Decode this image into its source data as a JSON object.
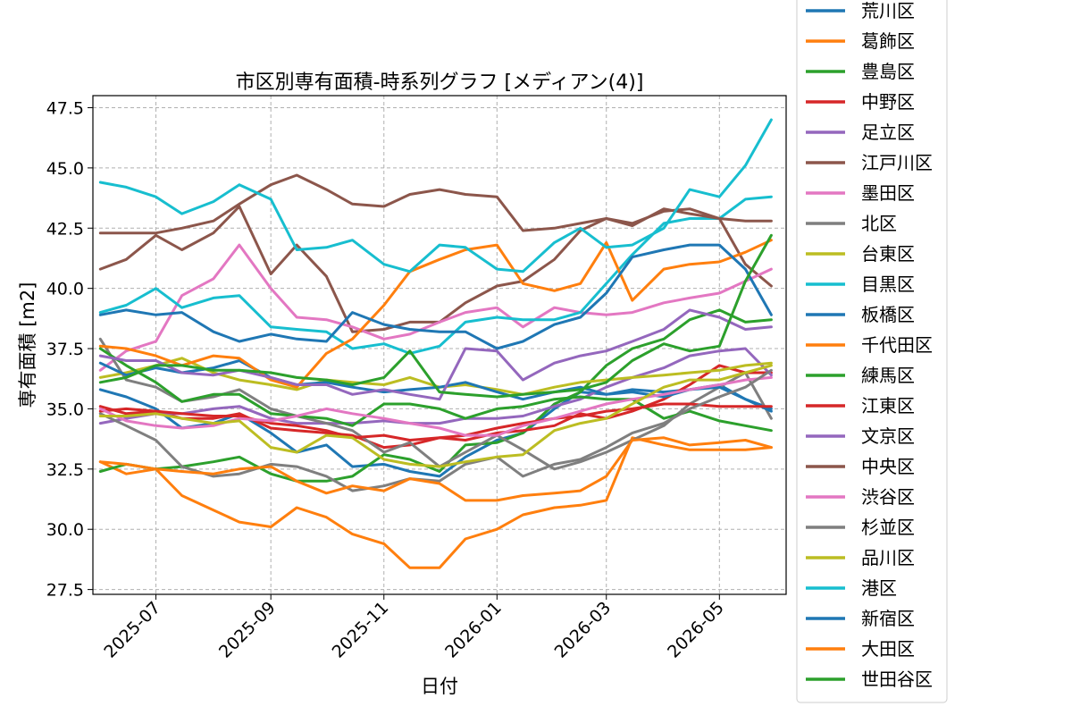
{
  "chart_data": {
    "type": "line",
    "title": "市区別専有面積-時系列グラフ [メディアン(4)]",
    "xlabel": "日付",
    "ylabel": "専有面積 [m2]",
    "xlim": [
      "2025-05-28",
      "2026-06-06"
    ],
    "ylim": [
      27.3,
      48.0
    ],
    "grid": true,
    "legend_position": "right-outside",
    "x_ticks": [
      "2025-07-01",
      "2025-09-01",
      "2025-11-01",
      "2026-01-01",
      "2026-03-01",
      "2026-05-01"
    ],
    "x_tick_labels": [
      "2025-07",
      "2025-09",
      "2025-11",
      "2026-01",
      "2026-03",
      "2026-05"
    ],
    "y_ticks": [
      27.5,
      30.0,
      32.5,
      35.0,
      37.5,
      40.0,
      42.5,
      45.0,
      47.5
    ],
    "y_tick_labels": [
      "27.5",
      "30.0",
      "32.5",
      "35.0",
      "37.5",
      "40.0",
      "42.5",
      "45.0",
      "47.5"
    ],
    "x": [
      "2025-06-01",
      "2025-06-15",
      "2025-07-01",
      "2025-07-15",
      "2025-08-01",
      "2025-08-15",
      "2025-09-01",
      "2025-09-15",
      "2025-10-01",
      "2025-10-15",
      "2025-11-01",
      "2025-11-15",
      "2025-12-01",
      "2025-12-15",
      "2026-01-01",
      "2026-01-15",
      "2026-02-01",
      "2026-02-15",
      "2026-03-01",
      "2026-03-15",
      "2026-04-01",
      "2026-04-15",
      "2026-05-01",
      "2026-05-15",
      "2026-05-29"
    ],
    "series": [
      {
        "name": "荒川区",
        "color": "#1f77b4",
        "values": [
          35.8,
          35.5,
          35.0,
          34.2,
          34.4,
          34.8,
          34.0,
          33.2,
          33.5,
          32.6,
          32.7,
          32.4,
          32.2,
          33.0,
          33.7,
          34.0,
          35.0,
          35.7,
          35.6,
          35.8,
          35.7,
          35.8,
          36.0,
          35.4,
          35.0
        ]
      },
      {
        "name": "葛飾区",
        "color": "#ff7f0e",
        "values": [
          32.8,
          32.3,
          32.5,
          31.4,
          30.8,
          30.3,
          30.1,
          30.9,
          30.5,
          29.8,
          29.4,
          28.4,
          28.4,
          29.6,
          30.0,
          30.6,
          30.9,
          31.0,
          31.2,
          33.8,
          33.5,
          33.3,
          33.3,
          33.3,
          33.4
        ]
      },
      {
        "name": "豊島区",
        "color": "#2ca02c",
        "values": [
          32.4,
          32.7,
          32.5,
          32.6,
          32.8,
          33.0,
          32.3,
          32.0,
          32.0,
          32.2,
          33.1,
          32.9,
          32.4,
          33.5,
          33.6,
          34.0,
          35.2,
          35.7,
          36.8,
          37.5,
          37.9,
          38.7,
          39.1,
          38.6,
          38.7
        ]
      },
      {
        "name": "中野区",
        "color": "#d62728",
        "values": [
          35.1,
          34.8,
          34.9,
          34.6,
          34.6,
          34.8,
          34.2,
          34.1,
          34.0,
          33.9,
          33.4,
          33.5,
          33.8,
          33.7,
          34.0,
          34.1,
          34.3,
          34.8,
          34.6,
          34.9,
          35.4,
          36.0,
          36.8,
          36.5,
          36.5
        ]
      },
      {
        "name": "足立区",
        "color": "#9467bd",
        "values": [
          34.4,
          34.6,
          34.8,
          34.8,
          35.0,
          35.1,
          34.6,
          34.4,
          34.4,
          34.4,
          34.5,
          34.4,
          34.4,
          34.6,
          34.6,
          34.7,
          35.1,
          35.4,
          35.9,
          36.3,
          36.7,
          37.2,
          37.4,
          37.5,
          36.4
        ]
      },
      {
        "name": "江戸川区",
        "color": "#8c564b",
        "values": [
          40.8,
          41.2,
          42.2,
          41.6,
          42.3,
          43.4,
          40.6,
          41.8,
          40.5,
          38.2,
          38.3,
          38.6,
          38.6,
          39.4,
          40.1,
          40.3,
          41.2,
          42.4,
          42.9,
          42.7,
          43.2,
          43.3,
          42.9,
          41.0,
          40.1
        ]
      },
      {
        "name": "墨田区",
        "color": "#e377c2",
        "values": [
          36.6,
          37.4,
          37.8,
          39.7,
          40.4,
          41.8,
          40.0,
          38.8,
          38.7,
          38.4,
          37.9,
          38.1,
          38.6,
          39.0,
          39.2,
          38.4,
          39.2,
          39.0,
          38.9,
          39.0,
          39.4,
          39.6,
          39.8,
          40.3,
          40.8
        ]
      },
      {
        "name": "北区",
        "color": "#7f7f7f",
        "values": [
          37.9,
          36.2,
          35.9,
          35.3,
          35.5,
          35.8,
          35.0,
          34.7,
          34.4,
          34.1,
          33.2,
          33.6,
          32.6,
          33.2,
          33.9,
          33.3,
          32.5,
          32.8,
          33.2,
          33.7,
          34.3,
          35.2,
          35.9,
          36.5,
          34.6
        ]
      },
      {
        "name": "台東区",
        "color": "#bcbd22",
        "values": [
          36.3,
          36.5,
          36.8,
          37.1,
          36.5,
          36.2,
          36.0,
          35.8,
          36.2,
          36.1,
          36.0,
          36.3,
          35.9,
          36.0,
          35.8,
          35.6,
          35.9,
          36.1,
          36.2,
          36.3,
          36.4,
          36.5,
          36.6,
          36.8,
          36.9
        ]
      },
      {
        "name": "目黒区",
        "color": "#17becf",
        "values": [
          39.0,
          39.3,
          40.0,
          39.2,
          39.6,
          39.7,
          38.4,
          38.3,
          38.2,
          37.5,
          37.7,
          37.3,
          37.6,
          38.6,
          38.8,
          38.7,
          38.7,
          39.0,
          40.2,
          41.4,
          42.7,
          42.9,
          42.9,
          43.7,
          43.8
        ]
      },
      {
        "name": "板橋区",
        "color": "#1f77b4",
        "values": [
          36.9,
          36.4,
          36.7,
          36.5,
          36.7,
          37.0,
          36.3,
          36.0,
          36.1,
          35.9,
          35.7,
          35.8,
          35.9,
          36.1,
          35.7,
          35.4,
          35.7,
          35.9,
          35.6,
          35.7,
          35.5,
          35.8,
          35.9,
          35.4,
          34.9
        ]
      },
      {
        "name": "千代田区",
        "color": "#ff7f0e",
        "values": [
          37.6,
          37.5,
          37.2,
          36.8,
          37.2,
          37.1,
          36.2,
          35.9,
          37.3,
          37.9,
          39.3,
          40.7,
          41.2,
          41.6,
          41.8,
          40.2,
          39.9,
          40.2,
          41.9,
          39.5,
          40.8,
          41.0,
          41.1,
          41.5,
          42.0
        ]
      },
      {
        "name": "練馬区",
        "color": "#2ca02c",
        "values": [
          37.5,
          36.8,
          36.1,
          35.3,
          35.6,
          35.6,
          34.8,
          34.7,
          34.6,
          34.3,
          35.2,
          35.2,
          35.0,
          34.6,
          35.0,
          35.1,
          35.4,
          35.5,
          35.4,
          35.4,
          34.6,
          34.9,
          34.5,
          34.3,
          34.1
        ]
      },
      {
        "name": "江東区",
        "color": "#d62728",
        "values": [
          34.9,
          35.0,
          34.9,
          34.8,
          34.7,
          34.7,
          34.4,
          34.3,
          34.1,
          33.8,
          33.9,
          33.7,
          33.8,
          33.9,
          34.2,
          34.4,
          34.6,
          34.7,
          34.9,
          35.0,
          35.2,
          35.2,
          35.1,
          35.1,
          35.1
        ]
      },
      {
        "name": "文京区",
        "color": "#9467bd",
        "values": [
          37.2,
          37.0,
          37.0,
          36.5,
          36.4,
          36.6,
          36.3,
          36.0,
          36.0,
          35.6,
          35.8,
          35.6,
          35.4,
          37.5,
          37.4,
          36.2,
          36.9,
          37.2,
          37.4,
          37.8,
          38.3,
          39.1,
          38.8,
          38.3,
          38.4
        ]
      },
      {
        "name": "中央区",
        "color": "#8c564b",
        "values": [
          42.3,
          42.3,
          42.3,
          42.5,
          42.8,
          43.5,
          44.3,
          44.7,
          44.1,
          43.5,
          43.4,
          43.9,
          44.1,
          43.9,
          43.8,
          42.4,
          42.5,
          42.7,
          42.9,
          42.6,
          43.3,
          43.1,
          42.9,
          42.8,
          42.8
        ]
      },
      {
        "name": "渋谷区",
        "color": "#e377c2",
        "values": [
          35.0,
          34.5,
          34.3,
          34.2,
          34.3,
          34.6,
          34.5,
          34.7,
          35.0,
          34.8,
          34.6,
          34.4,
          34.2,
          33.9,
          33.9,
          34.3,
          34.6,
          34.9,
          35.2,
          35.4,
          35.6,
          35.8,
          36.0,
          36.2,
          36.3
        ]
      },
      {
        "name": "杉並区",
        "color": "#7f7f7f",
        "values": [
          34.8,
          34.3,
          33.7,
          32.6,
          32.2,
          32.3,
          32.7,
          32.6,
          32.2,
          31.6,
          31.8,
          32.1,
          32.0,
          32.7,
          33.0,
          32.2,
          32.7,
          32.9,
          33.4,
          34.0,
          34.4,
          35.0,
          35.5,
          35.9,
          36.6
        ]
      },
      {
        "name": "品川区",
        "color": "#bcbd22",
        "values": [
          34.7,
          34.7,
          34.8,
          34.6,
          34.4,
          34.5,
          33.4,
          33.2,
          33.9,
          33.8,
          32.9,
          32.7,
          32.6,
          32.8,
          33.0,
          33.1,
          34.1,
          34.4,
          34.6,
          35.2,
          35.9,
          36.2,
          36.2,
          36.5,
          36.8
        ]
      },
      {
        "name": "港区",
        "color": "#17becf",
        "values": [
          44.4,
          44.2,
          43.8,
          43.1,
          43.6,
          44.3,
          43.7,
          41.6,
          41.7,
          42.0,
          41.0,
          40.7,
          41.8,
          41.7,
          40.8,
          40.7,
          41.9,
          42.5,
          41.7,
          41.8,
          42.5,
          44.1,
          43.8,
          45.1,
          47.0
        ]
      },
      {
        "name": "新宿区",
        "color": "#1f77b4",
        "values": [
          38.9,
          39.1,
          38.9,
          39.0,
          38.2,
          37.8,
          38.1,
          37.9,
          37.8,
          39.0,
          38.5,
          38.3,
          38.2,
          38.2,
          37.5,
          37.8,
          38.5,
          38.8,
          39.8,
          41.3,
          41.6,
          41.8,
          41.8,
          40.8,
          38.9
        ]
      },
      {
        "name": "大田区",
        "color": "#ff7f0e",
        "values": [
          32.8,
          32.7,
          32.5,
          32.4,
          32.3,
          32.5,
          32.6,
          32.0,
          31.5,
          31.8,
          31.6,
          32.1,
          31.9,
          31.2,
          31.2,
          31.4,
          31.5,
          31.6,
          32.2,
          33.7,
          33.8,
          33.5,
          33.6,
          33.7,
          33.4
        ]
      },
      {
        "name": "世田谷区",
        "color": "#2ca02c",
        "values": [
          36.1,
          36.3,
          36.8,
          36.8,
          36.6,
          36.6,
          36.5,
          36.3,
          36.2,
          36.0,
          36.3,
          37.4,
          35.7,
          35.6,
          35.5,
          35.6,
          35.7,
          35.8,
          36.1,
          37.0,
          37.7,
          37.4,
          37.6,
          40.3,
          42.2
        ]
      }
    ]
  }
}
